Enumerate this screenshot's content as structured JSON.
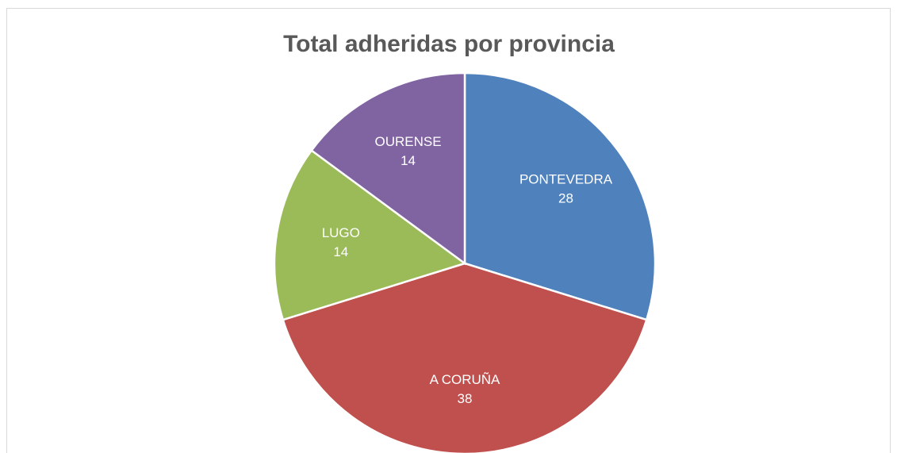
{
  "chart_data": {
    "type": "pie",
    "title": "Total adheridas por provincia",
    "categories": [
      "PONTEVEDRA",
      "A CORUÑA",
      "LUGO",
      "OURENSE"
    ],
    "values": [
      28,
      38,
      14,
      14
    ],
    "colors": [
      "#4f81bd",
      "#c0504d",
      "#9bbb59",
      "#8064a2"
    ]
  }
}
